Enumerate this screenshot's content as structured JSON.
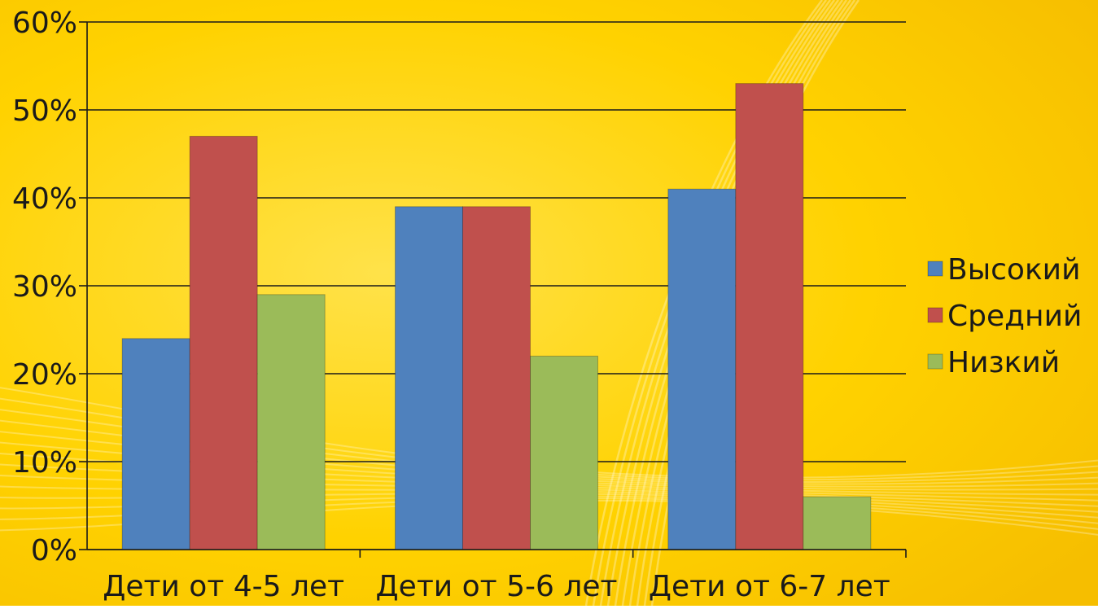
{
  "chart_data": {
    "type": "bar",
    "title": "",
    "xlabel": "",
    "ylabel": "",
    "categories": [
      "Дети от 4-5 лет",
      "Дети от 5-6 лет",
      "Дети от 6-7 лет"
    ],
    "series": [
      {
        "name": "Высокий",
        "values": [
          24,
          39,
          41
        ],
        "color": "#4F81BD"
      },
      {
        "name": "Средний",
        "values": [
          47,
          39,
          53
        ],
        "color": "#C0504D"
      },
      {
        "name": "Низкий",
        "values": [
          29,
          22,
          6
        ],
        "color": "#9BBB59"
      }
    ],
    "ylim": [
      0,
      60
    ],
    "yticks": [
      0,
      10,
      20,
      30,
      40,
      50,
      60
    ],
    "ytick_labels": [
      "0%",
      "10%",
      "20%",
      "30%",
      "40%",
      "50%",
      "60%"
    ],
    "grid": true,
    "legend_position": "right",
    "background_color": "#FFD100"
  }
}
